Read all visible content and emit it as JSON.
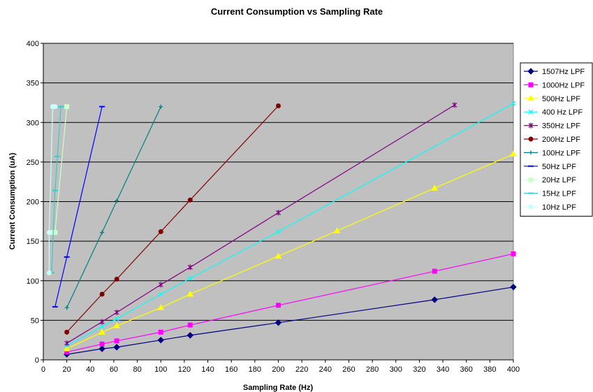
{
  "chart_data": {
    "type": "line",
    "title": "Current Consumption vs Sampling Rate",
    "xlabel": "Sampling Rate (Hz)",
    "ylabel": "Current Consumption (uA)",
    "xlim": [
      0,
      400
    ],
    "ylim": [
      0,
      400
    ],
    "xticks": [
      0,
      20,
      40,
      60,
      80,
      100,
      120,
      140,
      160,
      180,
      200,
      220,
      240,
      260,
      280,
      300,
      320,
      340,
      360,
      380,
      400
    ],
    "yticks": [
      0,
      50,
      100,
      150,
      200,
      250,
      300,
      350,
      400
    ],
    "grid": "horizontal",
    "legend_position": "right",
    "plot_background": "#c0c0c0",
    "series": [
      {
        "name": "1507Hz LPF",
        "color": "#000080",
        "marker": "diamond",
        "x": [
          20,
          50,
          62.5,
          100,
          125,
          200,
          333,
          400
        ],
        "y": [
          7,
          14,
          16,
          25,
          31,
          47,
          76,
          92
        ]
      },
      {
        "name": "1000Hz LPF",
        "color": "#ff00ff",
        "marker": "square",
        "x": [
          20,
          50,
          62.5,
          100,
          125,
          200,
          333,
          400
        ],
        "y": [
          10,
          20,
          24,
          35,
          44,
          69,
          112,
          134
        ]
      },
      {
        "name": "500Hz LPF",
        "color": "#ffff00",
        "marker": "triangle",
        "x": [
          20,
          50,
          62.5,
          100,
          125,
          200,
          250,
          333,
          400
        ],
        "y": [
          14,
          35,
          43,
          66,
          83,
          131,
          163,
          217,
          260
        ]
      },
      {
        "name": "400 Hz LPF",
        "color": "#00ffff",
        "marker": "x",
        "x": [
          20,
          50,
          62.5,
          100,
          125,
          200,
          400
        ],
        "y": [
          18,
          42,
          52,
          83,
          103,
          162,
          324
        ]
      },
      {
        "name": "350Hz LPF",
        "color": "#800080",
        "marker": "star",
        "x": [
          20,
          50,
          62.5,
          100,
          125,
          200,
          350
        ],
        "y": [
          21,
          48,
          60,
          95,
          117,
          186,
          322
        ]
      },
      {
        "name": "200Hz LPF",
        "color": "#800000",
        "marker": "circle",
        "x": [
          20,
          50,
          62.5,
          100,
          125,
          200
        ],
        "y": [
          35,
          83,
          102,
          162,
          202,
          321
        ]
      },
      {
        "name": "100Hz LPF",
        "color": "#008080",
        "marker": "plus",
        "x": [
          20,
          50,
          62.5,
          100
        ],
        "y": [
          66,
          161,
          201,
          320
        ]
      },
      {
        "name": "50Hz LPF",
        "color": "#0000ff",
        "marker": "dash",
        "x": [
          10,
          20,
          50
        ],
        "y": [
          67,
          130,
          320
        ]
      },
      {
        "name": "20Hz LPF",
        "color": "#ccffcc",
        "marker": "square",
        "x": [
          8,
          10,
          20
        ],
        "y": [
          161,
          161,
          320
        ]
      },
      {
        "name": "15Hz LPF",
        "color": "#33cccc",
        "marker": "dash",
        "x": [
          6,
          7,
          10,
          12,
          15
        ],
        "y": [
          110,
          110,
          214,
          257,
          320
        ]
      },
      {
        "name": "10Hz LPF",
        "color": "#ccffff",
        "marker": "circle",
        "x": [
          5,
          5,
          8,
          10
        ],
        "y": [
          110,
          161,
          320,
          320
        ]
      }
    ]
  }
}
